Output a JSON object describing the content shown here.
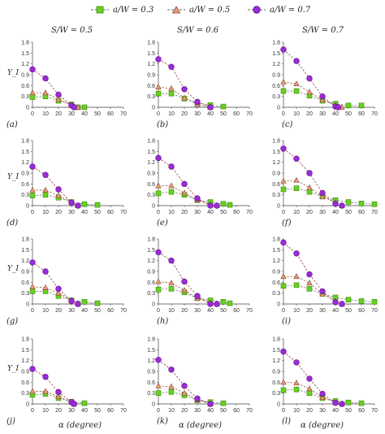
{
  "legend": [
    {
      "label": "a/W = 0.3",
      "marker": "square",
      "color": "#66d11e",
      "stroke": "#3d8a10"
    },
    {
      "label": "a/W = 0.5",
      "marker": "triangle",
      "color": "#e89a7a",
      "stroke": "#8a4a2a"
    },
    {
      "label": "a/W = 0.7",
      "marker": "circle",
      "color": "#9d2ad9",
      "stroke": "#5a1285"
    }
  ],
  "column_titles": [
    "S/W = 0.5",
    "S/W = 0.6",
    "S/W = 0.7"
  ],
  "y_label": "Y_I",
  "x_label": "α (degree)",
  "chart_data": [
    {
      "type": "line",
      "panel": "(a)",
      "x": [
        0,
        10,
        20,
        30,
        40,
        50,
        60,
        70
      ],
      "ylim": [
        0,
        1.8
      ],
      "yticks": [
        0,
        0.3,
        0.6,
        0.9,
        1.2,
        1.5,
        1.8
      ],
      "xticks": [
        0,
        10,
        20,
        30,
        40,
        50,
        60,
        70
      ],
      "series": [
        {
          "name": "a/W = 0.3",
          "x": [
            0,
            10,
            20,
            30,
            35,
            40
          ],
          "y": [
            0.28,
            0.3,
            0.18,
            0.08,
            0.0,
            0.0
          ]
        },
        {
          "name": "a/W = 0.5",
          "x": [
            0,
            10,
            20,
            30,
            35
          ],
          "y": [
            0.4,
            0.4,
            0.22,
            0.06,
            0.0
          ]
        },
        {
          "name": "a/W = 0.7",
          "x": [
            0,
            10,
            20,
            30,
            32
          ],
          "y": [
            1.05,
            0.8,
            0.35,
            0.05,
            0.0
          ]
        }
      ]
    },
    {
      "type": "line",
      "panel": "(b)",
      "x": [
        0,
        10,
        20,
        30,
        40,
        50,
        60,
        70
      ],
      "ylim": [
        0,
        1.8
      ],
      "yticks": [
        0,
        0.3,
        0.6,
        0.9,
        1.2,
        1.5,
        1.8
      ],
      "xticks": [
        0,
        10,
        20,
        30,
        40,
        50,
        60,
        70
      ],
      "series": [
        {
          "name": "a/W = 0.3",
          "x": [
            0,
            10,
            20,
            30,
            40,
            50
          ],
          "y": [
            0.38,
            0.38,
            0.24,
            0.12,
            0.06,
            0.02
          ]
        },
        {
          "name": "a/W = 0.5",
          "x": [
            0,
            10,
            20,
            30,
            40
          ],
          "y": [
            0.56,
            0.52,
            0.26,
            0.08,
            0.0
          ]
        },
        {
          "name": "a/W = 0.7",
          "x": [
            0,
            10,
            20,
            30,
            40
          ],
          "y": [
            1.33,
            1.12,
            0.5,
            0.15,
            0.0
          ]
        }
      ]
    },
    {
      "type": "line",
      "panel": "(c)",
      "x": [
        0,
        10,
        20,
        30,
        40,
        50,
        60,
        70
      ],
      "ylim": [
        0,
        1.8
      ],
      "yticks": [
        0,
        0.3,
        0.6,
        0.9,
        1.2,
        1.5,
        1.8
      ],
      "xticks": [
        0,
        10,
        20,
        30,
        40,
        50,
        60,
        70
      ],
      "series": [
        {
          "name": "a/W = 0.3",
          "x": [
            0,
            10,
            20,
            30,
            40,
            50,
            60
          ],
          "y": [
            0.45,
            0.45,
            0.32,
            0.18,
            0.1,
            0.05,
            0.05
          ]
        },
        {
          "name": "a/W = 0.5",
          "x": [
            0,
            10,
            20,
            30,
            40,
            45
          ],
          "y": [
            0.7,
            0.65,
            0.42,
            0.2,
            0.05,
            0.0
          ]
        },
        {
          "name": "a/W = 0.7",
          "x": [
            0,
            10,
            20,
            30,
            40,
            42
          ],
          "y": [
            1.6,
            1.28,
            0.8,
            0.3,
            0.02,
            0.0
          ]
        }
      ]
    },
    {
      "type": "line",
      "panel": "(d)",
      "x": [
        0,
        10,
        20,
        30,
        40,
        50,
        60,
        70
      ],
      "ylim": [
        0,
        1.8
      ],
      "yticks": [
        0,
        0.3,
        0.6,
        0.9,
        1.2,
        1.5,
        1.8
      ],
      "xticks": [
        0,
        10,
        20,
        30,
        40,
        50,
        60,
        70
      ],
      "series": [
        {
          "name": "a/W = 0.3",
          "x": [
            0,
            10,
            20,
            30,
            40,
            50
          ],
          "y": [
            0.28,
            0.3,
            0.22,
            0.1,
            0.04,
            0.02
          ]
        },
        {
          "name": "a/W = 0.5",
          "x": [
            0,
            10,
            20,
            30,
            35
          ],
          "y": [
            0.43,
            0.43,
            0.28,
            0.1,
            0.0
          ]
        },
        {
          "name": "a/W = 0.7",
          "x": [
            0,
            10,
            20,
            30,
            35
          ],
          "y": [
            1.08,
            0.85,
            0.45,
            0.08,
            0.0
          ]
        }
      ]
    },
    {
      "type": "line",
      "panel": "(e)",
      "x": [
        0,
        10,
        20,
        30,
        40,
        50,
        60,
        70
      ],
      "ylim": [
        0,
        1.8
      ],
      "yticks": [
        0,
        0.3,
        0.6,
        0.9,
        1.2,
        1.5,
        1.8
      ],
      "xticks": [
        0,
        10,
        20,
        30,
        40,
        50,
        60,
        70
      ],
      "series": [
        {
          "name": "a/W = 0.3",
          "x": [
            0,
            10,
            20,
            30,
            40,
            50,
            55
          ],
          "y": [
            0.34,
            0.38,
            0.3,
            0.15,
            0.1,
            0.05,
            0.02
          ]
        },
        {
          "name": "a/W = 0.5",
          "x": [
            0,
            10,
            20,
            30,
            40,
            45
          ],
          "y": [
            0.55,
            0.55,
            0.35,
            0.15,
            0.03,
            0.0
          ]
        },
        {
          "name": "a/W = 0.7",
          "x": [
            0,
            10,
            20,
            30,
            40,
            45
          ],
          "y": [
            1.32,
            1.08,
            0.6,
            0.2,
            0.0,
            0.0
          ]
        }
      ]
    },
    {
      "type": "line",
      "panel": "(f)",
      "x": [
        0,
        10,
        20,
        30,
        40,
        50,
        60,
        70
      ],
      "ylim": [
        0,
        1.8
      ],
      "yticks": [
        0,
        0.3,
        0.6,
        0.9,
        1.2,
        1.5,
        1.8
      ],
      "xticks": [
        0,
        10,
        20,
        30,
        40,
        50,
        60,
        70
      ],
      "series": [
        {
          "name": "a/W = 0.3",
          "x": [
            0,
            10,
            20,
            30,
            40,
            50,
            60,
            70
          ],
          "y": [
            0.45,
            0.48,
            0.38,
            0.25,
            0.15,
            0.1,
            0.06,
            0.04
          ]
        },
        {
          "name": "a/W = 0.5",
          "x": [
            0,
            10,
            20,
            30,
            40,
            45
          ],
          "y": [
            0.68,
            0.7,
            0.5,
            0.25,
            0.08,
            0.0
          ]
        },
        {
          "name": "a/W = 0.7",
          "x": [
            0,
            10,
            20,
            30,
            40,
            45
          ],
          "y": [
            1.58,
            1.3,
            0.9,
            0.35,
            0.05,
            0.0
          ]
        }
      ]
    },
    {
      "type": "line",
      "panel": "(g)",
      "x": [
        0,
        10,
        20,
        30,
        40,
        50,
        60,
        70
      ],
      "ylim": [
        0,
        1.8
      ],
      "yticks": [
        0,
        0.3,
        0.6,
        0.9,
        1.2,
        1.5,
        1.8
      ],
      "xticks": [
        0,
        10,
        20,
        30,
        40,
        50,
        60,
        70
      ],
      "series": [
        {
          "name": "a/W = 0.3",
          "x": [
            0,
            10,
            20,
            30,
            40,
            50
          ],
          "y": [
            0.35,
            0.35,
            0.22,
            0.1,
            0.06,
            0.02
          ]
        },
        {
          "name": "a/W = 0.5",
          "x": [
            0,
            10,
            20,
            30,
            35
          ],
          "y": [
            0.48,
            0.45,
            0.3,
            0.1,
            0.0
          ]
        },
        {
          "name": "a/W = 0.7",
          "x": [
            0,
            10,
            20,
            30,
            35
          ],
          "y": [
            1.15,
            0.9,
            0.42,
            0.08,
            0.0
          ]
        }
      ]
    },
    {
      "type": "line",
      "panel": "(h)",
      "x": [
        0,
        10,
        20,
        30,
        40,
        50,
        60,
        70
      ],
      "ylim": [
        0,
        1.8
      ],
      "yticks": [
        0,
        0.3,
        0.6,
        0.9,
        1.2,
        1.5,
        1.8
      ],
      "xticks": [
        0,
        10,
        20,
        30,
        40,
        50,
        60,
        70
      ],
      "series": [
        {
          "name": "a/W = 0.3",
          "x": [
            0,
            10,
            20,
            30,
            40,
            50,
            55
          ],
          "y": [
            0.4,
            0.42,
            0.32,
            0.16,
            0.1,
            0.06,
            0.02
          ]
        },
        {
          "name": "a/W = 0.5",
          "x": [
            0,
            10,
            20,
            30,
            40,
            45
          ],
          "y": [
            0.62,
            0.58,
            0.38,
            0.16,
            0.03,
            0.0
          ]
        },
        {
          "name": "a/W = 0.7",
          "x": [
            0,
            10,
            20,
            30,
            40,
            45
          ],
          "y": [
            1.43,
            1.2,
            0.62,
            0.22,
            0.0,
            0.0
          ]
        }
      ]
    },
    {
      "type": "line",
      "panel": "(i)",
      "x": [
        0,
        10,
        20,
        30,
        40,
        50,
        60,
        70
      ],
      "ylim": [
        0,
        1.8
      ],
      "yticks": [
        0,
        0.3,
        0.6,
        0.9,
        1.2,
        1.5,
        1.8
      ],
      "xticks": [
        0,
        10,
        20,
        30,
        40,
        50,
        60,
        70
      ],
      "series": [
        {
          "name": "a/W = 0.3",
          "x": [
            0,
            10,
            20,
            30,
            40,
            50,
            60,
            70
          ],
          "y": [
            0.5,
            0.52,
            0.42,
            0.28,
            0.18,
            0.12,
            0.08,
            0.06
          ]
        },
        {
          "name": "a/W = 0.5",
          "x": [
            0,
            10,
            20,
            30,
            40,
            45
          ],
          "y": [
            0.76,
            0.76,
            0.58,
            0.28,
            0.08,
            0.0
          ]
        },
        {
          "name": "a/W = 0.7",
          "x": [
            0,
            10,
            20,
            30,
            40,
            45
          ],
          "y": [
            1.7,
            1.4,
            0.82,
            0.35,
            0.05,
            0.0
          ]
        }
      ]
    },
    {
      "type": "line",
      "panel": "(j)",
      "x": [
        0,
        10,
        20,
        30,
        40,
        50,
        60,
        70
      ],
      "ylim": [
        0,
        1.8
      ],
      "yticks": [
        0,
        0.3,
        0.6,
        0.9,
        1.2,
        1.5,
        1.8
      ],
      "xticks": [
        0,
        10,
        20,
        30,
        40,
        50,
        60,
        70
      ],
      "series": [
        {
          "name": "a/W = 0.3",
          "x": [
            0,
            10,
            20,
            30,
            40
          ],
          "y": [
            0.25,
            0.28,
            0.16,
            0.06,
            0.02
          ]
        },
        {
          "name": "a/W = 0.5",
          "x": [
            0,
            10,
            20,
            30,
            32
          ],
          "y": [
            0.35,
            0.35,
            0.2,
            0.05,
            0.0
          ]
        },
        {
          "name": "a/W = 0.7",
          "x": [
            0,
            10,
            20,
            30,
            32
          ],
          "y": [
            0.97,
            0.75,
            0.33,
            0.05,
            0.0
          ]
        }
      ]
    },
    {
      "type": "line",
      "panel": "(k)",
      "x": [
        0,
        10,
        20,
        30,
        40,
        50,
        60,
        70
      ],
      "ylim": [
        0,
        1.8
      ],
      "yticks": [
        0,
        0.3,
        0.6,
        0.9,
        1.2,
        1.5,
        1.8
      ],
      "xticks": [
        0,
        10,
        20,
        30,
        40,
        50,
        60,
        70
      ],
      "series": [
        {
          "name": "a/W = 0.3",
          "x": [
            0,
            10,
            20,
            30,
            40,
            50
          ],
          "y": [
            0.3,
            0.33,
            0.24,
            0.1,
            0.05,
            0.02
          ]
        },
        {
          "name": "a/W = 0.5",
          "x": [
            0,
            10,
            20,
            30,
            40
          ],
          "y": [
            0.5,
            0.48,
            0.3,
            0.12,
            0.0
          ]
        },
        {
          "name": "a/W = 0.7",
          "x": [
            0,
            10,
            20,
            30,
            40
          ],
          "y": [
            1.22,
            0.95,
            0.5,
            0.15,
            0.0
          ]
        }
      ]
    },
    {
      "type": "line",
      "panel": "(l)",
      "x": [
        0,
        10,
        20,
        30,
        40,
        50,
        60,
        70
      ],
      "ylim": [
        0,
        1.8
      ],
      "yticks": [
        0,
        0.3,
        0.6,
        0.9,
        1.2,
        1.5,
        1.8
      ],
      "xticks": [
        0,
        10,
        20,
        30,
        40,
        50,
        60,
        70
      ],
      "series": [
        {
          "name": "a/W = 0.3",
          "x": [
            0,
            10,
            20,
            30,
            40,
            50,
            60
          ],
          "y": [
            0.38,
            0.4,
            0.3,
            0.16,
            0.08,
            0.04,
            0.02
          ]
        },
        {
          "name": "a/W = 0.5",
          "x": [
            0,
            10,
            20,
            30,
            40,
            45
          ],
          "y": [
            0.6,
            0.58,
            0.42,
            0.18,
            0.04,
            0.0
          ]
        },
        {
          "name": "a/W = 0.7",
          "x": [
            0,
            10,
            20,
            30,
            40,
            45
          ],
          "y": [
            1.45,
            1.15,
            0.7,
            0.28,
            0.03,
            0.0
          ]
        }
      ]
    }
  ]
}
